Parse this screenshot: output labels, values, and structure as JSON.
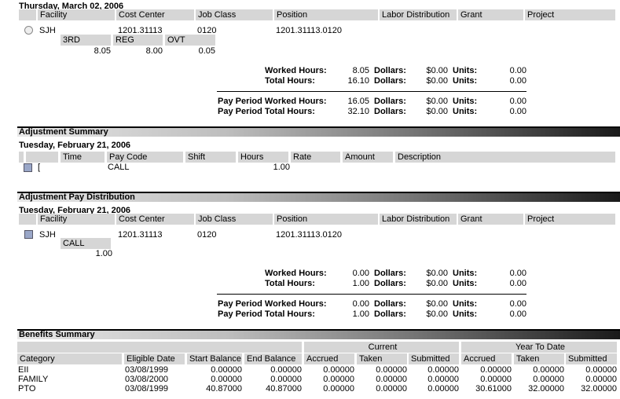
{
  "day1": {
    "date": "Thursday, March 02, 2006",
    "headers": [
      "Facility",
      "Cost Center",
      "Job Class",
      "Position",
      "Labor Distribution",
      "Grant",
      "Project"
    ],
    "row": {
      "icon": "clock-icon",
      "facility": "SJH",
      "cost_center": "1201.31113",
      "job_class": "0120",
      "position": "1201.31113.0120"
    },
    "paycodes": [
      "3RD",
      "REG",
      "OVT"
    ],
    "paycode_values": [
      "8.05",
      "8.00",
      "0.05"
    ],
    "worked": {
      "label": "Worked Hours:",
      "hours": "8.05",
      "dollars": "$0.00",
      "units": "0.00"
    },
    "total": {
      "label": "Total Hours:",
      "hours": "16.10",
      "dollars": "$0.00",
      "units": "0.00"
    },
    "pp_worked": {
      "label": "Pay Period Worked Hours:",
      "hours": "16.05",
      "dollars": "$0.00",
      "units": "0.00"
    },
    "pp_total": {
      "label": "Pay Period Total Hours:",
      "hours": "32.10",
      "dollars": "$0.00",
      "units": "0.00"
    }
  },
  "labels": {
    "dollars": "Dollars:",
    "units": "Units:"
  },
  "adj_summary": {
    "title": "Adjustment Summary",
    "date": "Tuesday, February 21, 2006",
    "headers": [
      "Time",
      "Pay Code",
      "Shift",
      "Hours",
      "Rate",
      "Amount",
      "Description"
    ],
    "row": {
      "icon": "calendar-icon",
      "mark": "[",
      "pay_code": "CALL",
      "hours": "1.00"
    }
  },
  "adj_dist": {
    "title": "Adjustment Pay Distribution",
    "date": "Tuesday, February 21, 2006",
    "headers": [
      "Facility",
      "Cost Center",
      "Job Class",
      "Position",
      "Labor Distribution",
      "Grant",
      "Project"
    ],
    "row": {
      "icon": "calendar-icon",
      "facility": "SJH",
      "cost_center": "1201.31113",
      "job_class": "0120",
      "position": "1201.31113.0120"
    },
    "paycode": "CALL",
    "paycode_value": "1.00",
    "worked": {
      "label": "Worked Hours:",
      "hours": "0.00",
      "dollars": "$0.00",
      "units": "0.00"
    },
    "total": {
      "label": "Total Hours:",
      "hours": "1.00",
      "dollars": "$0.00",
      "units": "0.00"
    },
    "pp_worked": {
      "label": "Pay Period Worked Hours:",
      "hours": "0.00",
      "dollars": "$0.00",
      "units": "0.00"
    },
    "pp_total": {
      "label": "Pay Period Total Hours:",
      "hours": "1.00",
      "dollars": "$0.00",
      "units": "0.00"
    }
  },
  "benefits": {
    "title": "Benefits Summary",
    "group_current": "Current",
    "group_ytd": "Year To Date",
    "headers": [
      "Category",
      "Eligible Date",
      "Start Balance",
      "End Balance",
      "Accrued",
      "Taken",
      "Submitted",
      "Accrued",
      "Taken",
      "Submitted"
    ],
    "rows": [
      [
        "EII",
        "03/08/1999",
        "0.00000",
        "0.00000",
        "0.00000",
        "0.00000",
        "0.00000",
        "0.00000",
        "0.00000",
        "0.00000"
      ],
      [
        "FAMILY",
        "03/08/2000",
        "0.00000",
        "0.00000",
        "0.00000",
        "0.00000",
        "0.00000",
        "0.00000",
        "0.00000",
        "0.00000"
      ],
      [
        "PTO",
        "03/08/1999",
        "40.87000",
        "40.87000",
        "0.00000",
        "0.00000",
        "0.00000",
        "30.61000",
        "32.00000",
        "32.00000"
      ]
    ]
  }
}
